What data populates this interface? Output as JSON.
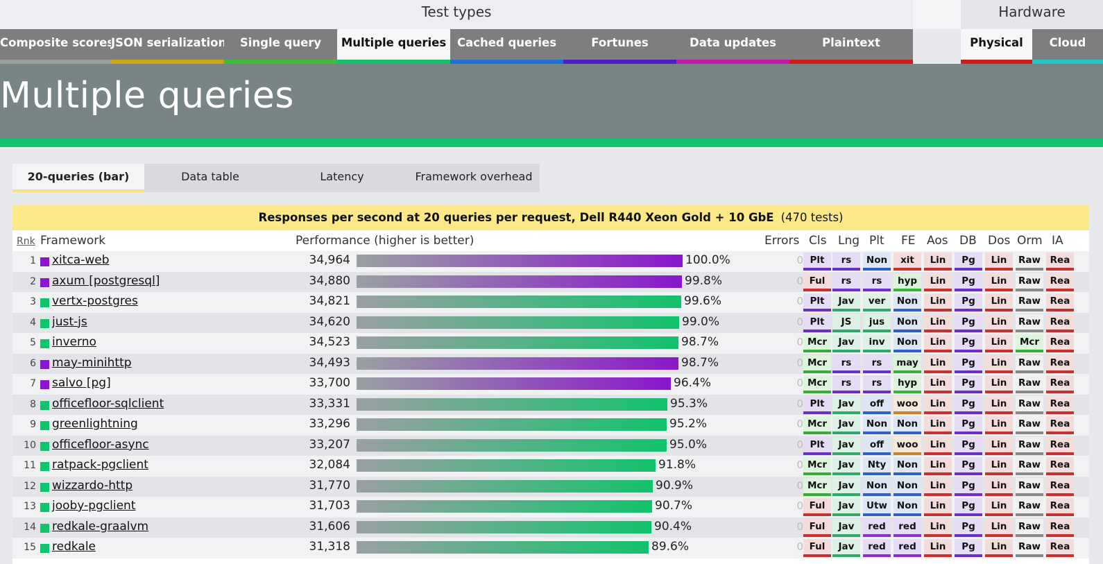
{
  "header": {
    "test_types_label": "Test types",
    "hardware_label": "Hardware"
  },
  "test_tabs": [
    {
      "label": "Composite scores",
      "color": "#9e9e9e"
    },
    {
      "label": "JSON serialization",
      "color": "#c8a90f"
    },
    {
      "label": "Single query",
      "color": "#3cbf3c"
    },
    {
      "label": "Multiple queries",
      "color": "#12c26c",
      "active": true
    },
    {
      "label": "Cached queries",
      "color": "#1e6fd8"
    },
    {
      "label": "Fortunes",
      "color": "#4a1ec8"
    },
    {
      "label": "Data updates",
      "color": "#c416b0"
    },
    {
      "label": "Plaintext",
      "color": "#d11a1a"
    }
  ],
  "hardware_tabs": [
    {
      "label": "Physical",
      "color": "#d11a1a",
      "active": true
    },
    {
      "label": "Cloud",
      "color": "#1ec8c8"
    }
  ],
  "page_title": "Multiple queries",
  "sub_tabs": [
    {
      "label": "20-queries (bar)",
      "active": true
    },
    {
      "label": "Data table"
    },
    {
      "label": "Latency"
    },
    {
      "label": "Framework overhead"
    }
  ],
  "chart": {
    "title": "Responses per second at 20 queries per request, Dell R440 Xeon Gold + 10 GbE",
    "test_count": "(470 tests)"
  },
  "columns": {
    "rnk": "Rnk",
    "framework": "Framework",
    "performance": "Performance (higher is better)",
    "errors": "Errors",
    "cls": "Cls",
    "lng": "Lng",
    "plt": "Plt",
    "fe": "FE",
    "aos": "Aos",
    "db": "DB",
    "dos": "Dos",
    "orm": "Orm",
    "ia": "IA"
  },
  "colors": {
    "purple": "#8a17cc",
    "green": "#12c26c"
  },
  "chart_data": {
    "type": "bar",
    "title": "Responses per second at 20 queries per request, Dell R440 Xeon Gold + 10 GbE",
    "ylabel": "Performance (higher is better)",
    "categories": [
      "xitca-web",
      "axum [postgresql]",
      "vertx-postgres",
      "just-js",
      "inverno",
      "may-minihttp",
      "salvo [pg]",
      "officefloor-sqlclient",
      "greenlightning",
      "officefloor-async",
      "ratpack-pgclient",
      "wizzardo-http",
      "jooby-pgclient",
      "redkale-graalvm",
      "redkale"
    ],
    "values": [
      34964,
      34880,
      34821,
      34620,
      34523,
      34493,
      33700,
      33331,
      33296,
      33207,
      32084,
      31770,
      31703,
      31606,
      31318
    ]
  },
  "rows": [
    {
      "rank": "1",
      "name": "xitca-web",
      "value": "34,964",
      "pct": "100.0%",
      "frac": 1.0,
      "color": "purple",
      "errors": "0",
      "tags": [
        "Plt",
        "rs",
        "Non",
        "xit",
        "Lin",
        "Pg",
        "Lin",
        "Raw",
        "Rea"
      ]
    },
    {
      "rank": "2",
      "name": "axum [postgresql]",
      "value": "34,880",
      "pct": "99.8%",
      "frac": 0.998,
      "color": "purple",
      "errors": "0",
      "tags": [
        "Ful",
        "rs",
        "rs",
        "hyp",
        "Lin",
        "Pg",
        "Lin",
        "Raw",
        "Rea"
      ]
    },
    {
      "rank": "3",
      "name": "vertx-postgres",
      "value": "34,821",
      "pct": "99.6%",
      "frac": 0.996,
      "color": "green",
      "errors": "0",
      "tags": [
        "Plt",
        "Jav",
        "ver",
        "Non",
        "Lin",
        "Pg",
        "Lin",
        "Raw",
        "Rea"
      ]
    },
    {
      "rank": "4",
      "name": "just-js",
      "value": "34,620",
      "pct": "99.0%",
      "frac": 0.99,
      "color": "green",
      "errors": "0",
      "tags": [
        "Plt",
        "JS",
        "jus",
        "Non",
        "Lin",
        "Pg",
        "Lin",
        "Raw",
        "Rea"
      ]
    },
    {
      "rank": "5",
      "name": "inverno",
      "value": "34,523",
      "pct": "98.7%",
      "frac": 0.987,
      "color": "green",
      "errors": "0",
      "tags": [
        "Mcr",
        "Jav",
        "inv",
        "Non",
        "Lin",
        "Pg",
        "Lin",
        "Mcr",
        "Rea"
      ]
    },
    {
      "rank": "6",
      "name": "may-minihttp",
      "value": "34,493",
      "pct": "98.7%",
      "frac": 0.987,
      "color": "purple",
      "errors": "0",
      "tags": [
        "Mcr",
        "rs",
        "rs",
        "may",
        "Lin",
        "Pg",
        "Lin",
        "Raw",
        "Rea"
      ]
    },
    {
      "rank": "7",
      "name": "salvo [pg]",
      "value": "33,700",
      "pct": "96.4%",
      "frac": 0.964,
      "color": "purple",
      "errors": "0",
      "tags": [
        "Mcr",
        "rs",
        "rs",
        "hyp",
        "Lin",
        "Pg",
        "Lin",
        "Raw",
        "Rea"
      ]
    },
    {
      "rank": "8",
      "name": "officefloor-sqlclient",
      "value": "33,331",
      "pct": "95.3%",
      "frac": 0.953,
      "color": "green",
      "errors": "0",
      "tags": [
        "Plt",
        "Jav",
        "off",
        "woo",
        "Lin",
        "Pg",
        "Lin",
        "Raw",
        "Rea"
      ]
    },
    {
      "rank": "9",
      "name": "greenlightning",
      "value": "33,296",
      "pct": "95.2%",
      "frac": 0.952,
      "color": "green",
      "errors": "0",
      "tags": [
        "Mcr",
        "Jav",
        "Non",
        "Non",
        "Lin",
        "Pg",
        "Lin",
        "Raw",
        "Rea"
      ]
    },
    {
      "rank": "10",
      "name": "officefloor-async",
      "value": "33,207",
      "pct": "95.0%",
      "frac": 0.95,
      "color": "green",
      "errors": "0",
      "tags": [
        "Plt",
        "Jav",
        "off",
        "woo",
        "Lin",
        "Pg",
        "Lin",
        "Raw",
        "Rea"
      ]
    },
    {
      "rank": "11",
      "name": "ratpack-pgclient",
      "value": "32,084",
      "pct": "91.8%",
      "frac": 0.918,
      "color": "green",
      "errors": "0",
      "tags": [
        "Mcr",
        "Jav",
        "Nty",
        "Non",
        "Lin",
        "Pg",
        "Lin",
        "Raw",
        "Rea"
      ]
    },
    {
      "rank": "12",
      "name": "wizzardo-http",
      "value": "31,770",
      "pct": "90.9%",
      "frac": 0.909,
      "color": "green",
      "errors": "0",
      "tags": [
        "Mcr",
        "Jav",
        "Non",
        "Non",
        "Lin",
        "Pg",
        "Lin",
        "Raw",
        "Rea"
      ]
    },
    {
      "rank": "13",
      "name": "jooby-pgclient",
      "value": "31,703",
      "pct": "90.7%",
      "frac": 0.907,
      "color": "green",
      "errors": "0",
      "tags": [
        "Ful",
        "Jav",
        "Utw",
        "Non",
        "Lin",
        "Pg",
        "Lin",
        "Raw",
        "Rea"
      ]
    },
    {
      "rank": "14",
      "name": "redkale-graalvm",
      "value": "31,606",
      "pct": "90.4%",
      "frac": 0.904,
      "color": "green",
      "errors": "0",
      "tags": [
        "Ful",
        "Jav",
        "red",
        "red",
        "Lin",
        "Pg",
        "Lin",
        "Raw",
        "Rea"
      ]
    },
    {
      "rank": "15",
      "name": "redkale",
      "value": "31,318",
      "pct": "89.6%",
      "frac": 0.896,
      "color": "green",
      "errors": "0",
      "tags": [
        "Ful",
        "Jav",
        "red",
        "red",
        "Lin",
        "Pg",
        "Lin",
        "Raw",
        "Rea"
      ]
    }
  ]
}
